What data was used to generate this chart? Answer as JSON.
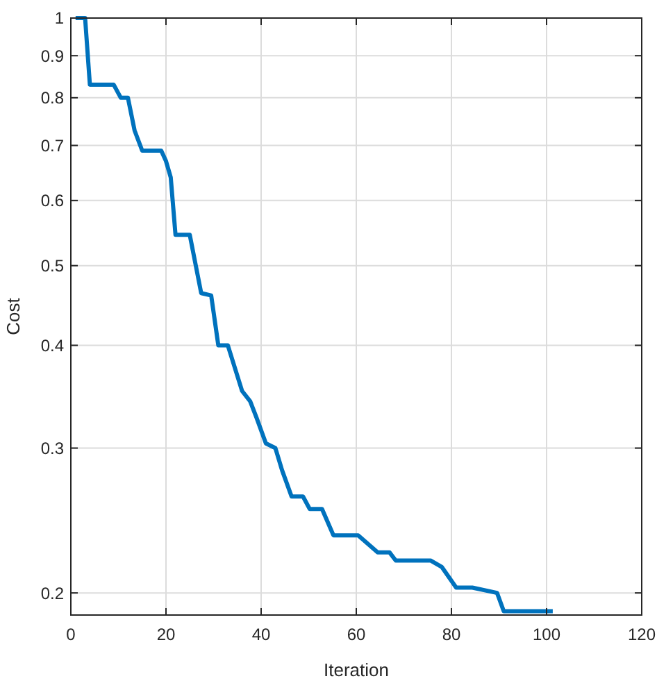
{
  "chart_data": {
    "type": "line",
    "xlabel": "Iteration",
    "ylabel": "Cost",
    "x": [
      1,
      3,
      4,
      9,
      10.5,
      12,
      13.4,
      15,
      19,
      20,
      21,
      22,
      25,
      27.4,
      29.5,
      31,
      33,
      36,
      37.7,
      39,
      41,
      43,
      44.4,
      46.4,
      48.8,
      50.2,
      52.8,
      55.2,
      60.4,
      64.5,
      67,
      68.3,
      75.6,
      78,
      81,
      84.4,
      89.6,
      91,
      101.3
    ],
    "series": [
      {
        "color": "#0072bd",
        "values": [
          1,
          1,
          0.83,
          0.83,
          0.8,
          0.8,
          0.73,
          0.69,
          0.69,
          0.67,
          0.64,
          0.545,
          0.545,
          0.463,
          0.46,
          0.4,
          0.4,
          0.352,
          0.342,
          0.327,
          0.304,
          0.3,
          0.282,
          0.262,
          0.262,
          0.253,
          0.253,
          0.235,
          0.235,
          0.224,
          0.224,
          0.219,
          0.219,
          0.215,
          0.203,
          0.203,
          0.2,
          0.19,
          0.19
        ]
      }
    ],
    "xlim": [
      0,
      120
    ],
    "xticks": [
      0,
      20,
      40,
      60,
      80,
      100,
      120
    ],
    "ylim": [
      0.188,
      1
    ],
    "yticks": [
      0.2,
      0.3,
      0.4,
      0.5,
      0.6,
      0.7,
      0.8,
      0.9,
      1
    ],
    "log": "y",
    "grid": true,
    "marker": "none",
    "line_style": "solid"
  }
}
